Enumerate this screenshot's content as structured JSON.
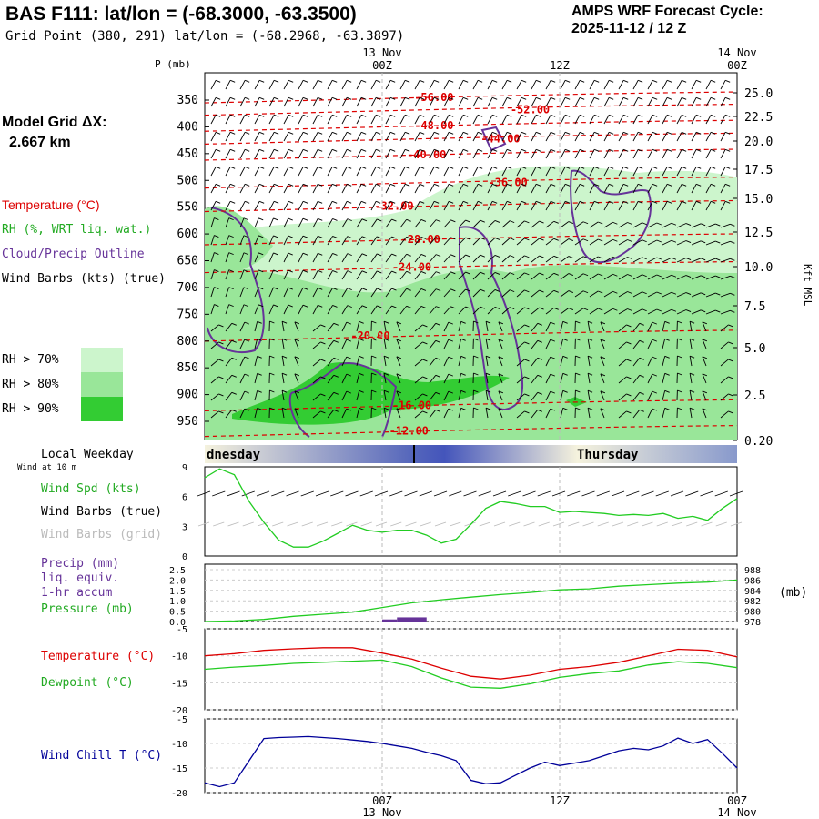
{
  "header": {
    "title": "BAS F111:  lat/lon = (-68.3000, -63.3500)",
    "subtitle": "Grid Point (380, 291) lat/lon = (-68.2968, -63.3897)",
    "cycle_line1": "AMPS WRF Forecast Cycle:",
    "cycle_line2": "2025-11-12 / 12  Z"
  },
  "sidebar": {
    "grid_label": "Model Grid ΔX:",
    "grid_value": "2.667 km",
    "legend_temperature": "Temperature (°C)",
    "legend_rh": "RH (%, WRT liq. wat.)",
    "legend_cloud": "Cloud/Precip Outline",
    "legend_wind": "Wind Barbs (kts) (true)",
    "rh70": "RH > 70%",
    "rh80": "RH > 80%",
    "rh90": "RH > 90%",
    "local_weekday": "Local Weekday",
    "wind_10m": "Wind at 10 m",
    "wind_spd": "Wind Spd (kts)",
    "wind_barbs_true": "Wind Barbs (true)",
    "wind_barbs_grid": "Wind Barbs (grid)",
    "precip_1": "Precip (mm)",
    "precip_2": "liq. equiv.",
    "precip_3": "1-hr accum",
    "pressure": "Pressure (mb)",
    "pressure_unit": "(mb)",
    "temp": "Temperature (°C)",
    "dewpoint": "Dewpoint (°C)",
    "wind_chill": "Wind Chill T (°C)"
  },
  "colors": {
    "temperature": "#dd0000",
    "rh70": "#ccf5cc",
    "rh80": "#99e699",
    "rh90": "#33cc33",
    "cloud": "#663399",
    "wind_speed": "#22cc22",
    "pressure": "#22cc22",
    "precip": "#663399",
    "dewpoint": "#22cc22",
    "wind_chill": "#000099",
    "barb_grid": "#bbbbbb"
  },
  "chart_data": [
    {
      "type": "heatmap",
      "name": "cross-section",
      "p_axis_label": "P (mb)",
      "p_ticks": [
        "350",
        "400",
        "450",
        "500",
        "550",
        "600",
        "650",
        "700",
        "750",
        "800",
        "850",
        "900",
        "950"
      ],
      "kft_axis_label": "Kft MSL",
      "kft_ticks": [
        "25.0",
        "22.5",
        "20.0",
        "17.5",
        "15.0",
        "12.5",
        "10.0",
        "7.5",
        "5.0",
        "2.5",
        "0.20"
      ],
      "top_dates": [
        {
          "date": "13 Nov",
          "time": "00Z",
          "hour": 12
        },
        {
          "date": "",
          "time": "12Z",
          "hour": 24
        },
        {
          "date": "14 Nov",
          "time": "00Z",
          "hour": 36
        }
      ],
      "temperature_labels": [
        {
          "label": "-56.00",
          "hour": 15.5,
          "p": 345
        },
        {
          "label": "-52.00",
          "hour": 22.0,
          "p": 368
        },
        {
          "label": "-48.00",
          "hour": 15.5,
          "p": 398
        },
        {
          "label": "-44.00",
          "hour": 20.0,
          "p": 422
        },
        {
          "label": "-40.00",
          "hour": 15.0,
          "p": 452
        },
        {
          "label": "-36.00",
          "hour": 20.5,
          "p": 504
        },
        {
          "label": "-32.00",
          "hour": 12.8,
          "p": 548
        },
        {
          "label": "-28.00",
          "hour": 14.6,
          "p": 610
        },
        {
          "label": "-24.00",
          "hour": 14.0,
          "p": 662
        },
        {
          "label": "-20.00",
          "hour": 11.2,
          "p": 790
        },
        {
          "label": "-16.00",
          "hour": 14.0,
          "p": 920
        },
        {
          "label": "-12.00",
          "hour": 13.8,
          "p": 968
        }
      ]
    },
    {
      "type": "line",
      "name": "wind-speed",
      "series_legend": "Wind Spd (kts)",
      "ylim": [
        0,
        9
      ],
      "y_ticks": [
        "9",
        "6",
        "3",
        "0"
      ],
      "x_hours": [
        0,
        1,
        2,
        3,
        4,
        5,
        6,
        7,
        8,
        9,
        10,
        11,
        12,
        13,
        14,
        15,
        16,
        17,
        18,
        19,
        20,
        21,
        22,
        23,
        24,
        25,
        26,
        27,
        28,
        29,
        30,
        31,
        32,
        33,
        34,
        35,
        36
      ],
      "values": [
        7.9,
        8.8,
        8.2,
        5.5,
        3.4,
        1.6,
        0.9,
        0.9,
        1.5,
        2.3,
        3.1,
        2.6,
        2.4,
        2.6,
        2.6,
        2.1,
        1.3,
        1.7,
        3.2,
        4.8,
        5.5,
        5.3,
        5.0,
        5.0,
        4.4,
        4.5,
        4.4,
        4.3,
        4.1,
        4.2,
        4.1,
        4.3,
        3.8,
        4.0,
        3.6,
        4.8,
        5.8
      ]
    },
    {
      "type": "line",
      "name": "pressure-precip",
      "series_legend": "Pressure (mb)",
      "precip_ylim": [
        0,
        2.5
      ],
      "precip_ticks": [
        "2.5",
        "2.0",
        "1.5",
        "1.0",
        "0.5",
        "0.0"
      ],
      "pressure_ylim": [
        978,
        988
      ],
      "pressure_ticks": [
        "988",
        "986",
        "984",
        "982",
        "980",
        "978"
      ],
      "x_hours": [
        0,
        2,
        4,
        6,
        8,
        10,
        12,
        14,
        16,
        18,
        20,
        22,
        24,
        26,
        28,
        30,
        32,
        34,
        36
      ],
      "pressure": [
        978.0,
        978.1,
        978.4,
        979.0,
        979.4,
        979.8,
        980.7,
        981.6,
        982.2,
        982.7,
        983.2,
        983.6,
        984.1,
        984.3,
        984.8,
        985.1,
        985.4,
        985.6,
        986.0
      ],
      "precip": [
        {
          "hour": 12.0,
          "value": 0.1
        },
        {
          "hour": 13.0,
          "value": 0.2
        },
        {
          "hour": 14.0,
          "value": 0.2
        }
      ]
    },
    {
      "type": "line",
      "name": "temperature-dewpoint",
      "ylim": [
        -20,
        -5
      ],
      "y_ticks": [
        "-5",
        "-10",
        "-15",
        "-20"
      ],
      "x_hours": [
        0,
        2,
        4,
        6,
        8,
        10,
        12,
        14,
        16,
        18,
        20,
        22,
        24,
        26,
        28,
        30,
        32,
        34,
        36
      ],
      "series": [
        {
          "name": "Temperature (°C)",
          "values": [
            -10.0,
            -9.6,
            -9.0,
            -8.7,
            -8.5,
            -8.5,
            -9.5,
            -10.6,
            -12.3,
            -13.8,
            -14.3,
            -13.6,
            -12.5,
            -12.0,
            -11.2,
            -10.0,
            -8.8,
            -9.0,
            -10.2
          ]
        },
        {
          "name": "Dewpoint (°C)",
          "values": [
            -12.5,
            -12.1,
            -11.8,
            -11.4,
            -11.2,
            -11.0,
            -10.8,
            -12.0,
            -14.1,
            -15.8,
            -16.0,
            -15.2,
            -14.0,
            -13.3,
            -12.8,
            -11.7,
            -11.1,
            -11.4,
            -12.2
          ]
        }
      ]
    },
    {
      "type": "line",
      "name": "wind-chill",
      "ylim": [
        -20,
        -5
      ],
      "y_ticks": [
        "-5",
        "-10",
        "-15",
        "-20"
      ],
      "x_hours": [
        0,
        1,
        2,
        3,
        4,
        5,
        6,
        7,
        8,
        9,
        10,
        11,
        12,
        13,
        14,
        15,
        16,
        17,
        18,
        19,
        20,
        21,
        22,
        23,
        24,
        25,
        26,
        27,
        28,
        29,
        30,
        31,
        32,
        33,
        34,
        35,
        36
      ],
      "values": [
        -18.0,
        -18.8,
        -18.0,
        -13.5,
        -9.0,
        -8.8,
        -8.7,
        -8.6,
        -8.8,
        -9.0,
        -9.3,
        -9.6,
        -10.0,
        -10.5,
        -11.0,
        -11.8,
        -12.5,
        -13.5,
        -17.5,
        -18.2,
        -18.0,
        -16.5,
        -15.0,
        -13.8,
        -14.5,
        -14.0,
        -13.5,
        -12.5,
        -11.5,
        -11.0,
        -11.3,
        -10.5,
        -8.9,
        -10.0,
        -9.2,
        -12.0,
        -15.0
      ]
    }
  ],
  "weekday": {
    "left": "dnesday",
    "right": "Thursday"
  },
  "bottom_dates": [
    {
      "time": "00Z",
      "date": "13 Nov",
      "hour": 12
    },
    {
      "time": "12Z",
      "date": "",
      "hour": 24
    },
    {
      "time": "00Z",
      "date": "14 Nov",
      "hour": 36
    }
  ]
}
